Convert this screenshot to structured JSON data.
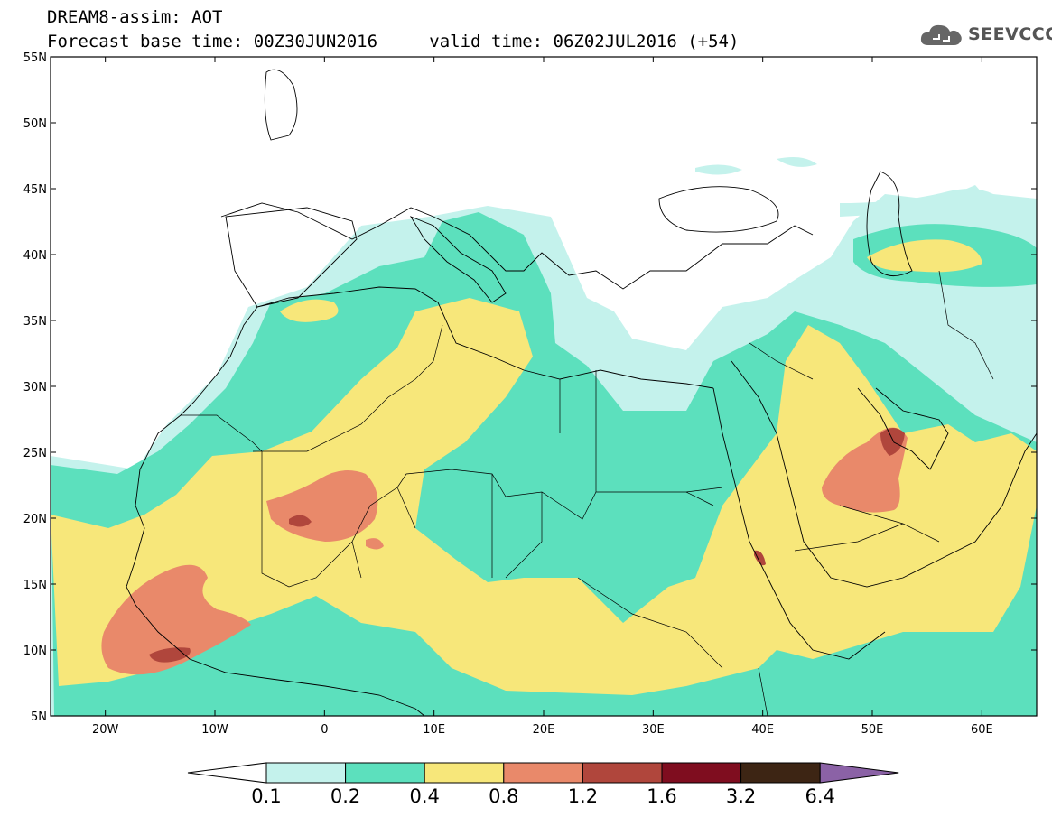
{
  "header": {
    "title": "DREAM8-assim: AOT",
    "forecast_base_label": "Forecast base time: 00Z30JUN2016",
    "valid_time_label": "valid time: 06Z02JUL2016 (+54)",
    "logo_text": "SEEVCCC"
  },
  "map": {
    "lon_range": [
      -25,
      65
    ],
    "lat_range": [
      5,
      55
    ],
    "lat_ticks": [
      {
        "value": 55,
        "label": "55N"
      },
      {
        "value": 50,
        "label": "50N"
      },
      {
        "value": 45,
        "label": "45N"
      },
      {
        "value": 40,
        "label": "40N"
      },
      {
        "value": 35,
        "label": "35N"
      },
      {
        "value": 30,
        "label": "30N"
      },
      {
        "value": 25,
        "label": "25N"
      },
      {
        "value": 20,
        "label": "20N"
      },
      {
        "value": 15,
        "label": "15N"
      },
      {
        "value": 10,
        "label": "10N"
      },
      {
        "value": 5,
        "label": "5N"
      }
    ],
    "lon_ticks": [
      {
        "value": -20,
        "label": "20W"
      },
      {
        "value": -10,
        "label": "10W"
      },
      {
        "value": 0,
        "label": "0"
      },
      {
        "value": 10,
        "label": "10E"
      },
      {
        "value": 20,
        "label": "20E"
      },
      {
        "value": 30,
        "label": "30E"
      },
      {
        "value": 40,
        "label": "40E"
      },
      {
        "value": 50,
        "label": "50E"
      },
      {
        "value": 60,
        "label": "60E"
      }
    ]
  },
  "colorbar": {
    "colors": [
      "#ffffff",
      "#c4f2ec",
      "#5ce0bd",
      "#f7e77a",
      "#e9896a",
      "#b0463c",
      "#7f0d1f",
      "#3d2514",
      "#8b62a6"
    ],
    "labels": [
      "0.1",
      "0.2",
      "0.4",
      "0.8",
      "1.2",
      "1.6",
      "3.2",
      "6.4"
    ]
  }
}
